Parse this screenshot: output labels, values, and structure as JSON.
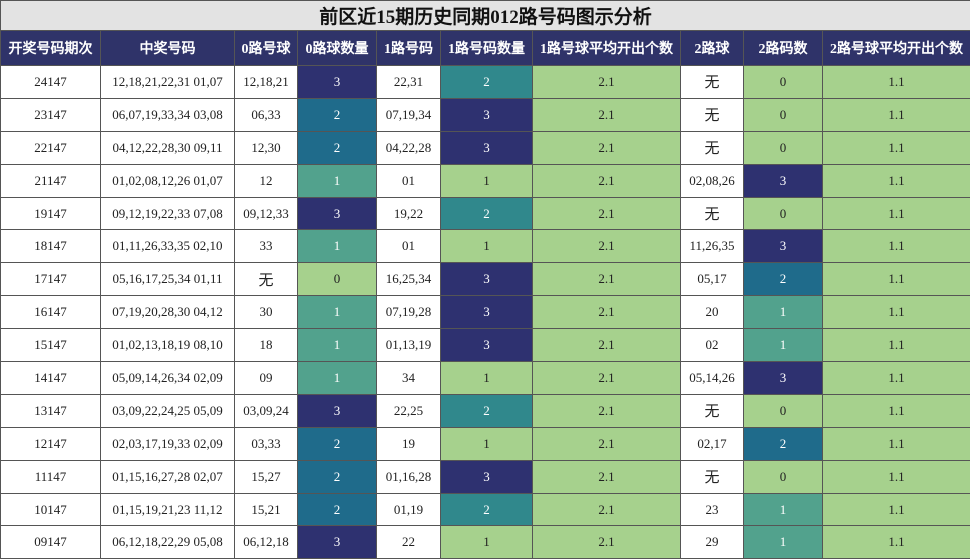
{
  "title": "前区近15期历史同期012路号码图示分析",
  "table": {
    "headers": [
      "开奖号码期次",
      "中奖号码",
      "0路号球",
      "0路球数量",
      "1路号码",
      "1路号码数量",
      "1路号球平均开出个数",
      "2路球",
      "2路码数",
      "2路号球平均开出个数"
    ],
    "rows": [
      [
        "24147",
        "12,18,21,22,31 01,07",
        "12,18,21",
        3,
        "22,31",
        2,
        2.1,
        "无",
        0,
        1.1
      ],
      [
        "23147",
        "06,07,19,33,34 03,08",
        "06,33",
        2,
        "07,19,34",
        3,
        2.1,
        "无",
        0,
        1.1
      ],
      [
        "22147",
        "04,12,22,28,30 09,11",
        "12,30",
        2,
        "04,22,28",
        3,
        2.1,
        "无",
        0,
        1.1
      ],
      [
        "21147",
        "01,02,08,12,26 01,07",
        "12",
        1,
        "01",
        1,
        2.1,
        "02,08,26",
        3,
        1.1
      ],
      [
        "19147",
        "09,12,19,22,33 07,08",
        "09,12,33",
        3,
        "19,22",
        2,
        2.1,
        "无",
        0,
        1.1
      ],
      [
        "18147",
        "01,11,26,33,35 02,10",
        "33",
        1,
        "01",
        1,
        2.1,
        "11,26,35",
        3,
        1.1
      ],
      [
        "17147",
        "05,16,17,25,34 01,11",
        "无",
        0,
        "16,25,34",
        3,
        2.1,
        "05,17",
        2,
        1.1
      ],
      [
        "16147",
        "07,19,20,28,30 04,12",
        "30",
        1,
        "07,19,28",
        3,
        2.1,
        "20",
        1,
        1.1
      ],
      [
        "15147",
        "01,02,13,18,19 08,10",
        "18",
        1,
        "01,13,19",
        3,
        2.1,
        "02",
        1,
        1.1
      ],
      [
        "14147",
        "05,09,14,26,34 02,09",
        "09",
        1,
        "34",
        1,
        2.1,
        "05,14,26",
        3,
        1.1
      ],
      [
        "13147",
        "03,09,22,24,25 05,09",
        "03,09,24",
        3,
        "22,25",
        2,
        2.1,
        "无",
        0,
        1.1
      ],
      [
        "12147",
        "02,03,17,19,33 02,09",
        "03,33",
        2,
        "19",
        1,
        2.1,
        "02,17",
        2,
        1.1
      ],
      [
        "11147",
        "01,15,16,27,28 02,07",
        "15,27",
        2,
        "01,16,28",
        3,
        2.1,
        "无",
        0,
        1.1
      ],
      [
        "10147",
        "01,15,19,21,23 11,12",
        "15,21",
        2,
        "01,19",
        2,
        2.1,
        "23",
        1,
        1.1
      ],
      [
        "09147",
        "06,12,18,22,29 05,08",
        "06,12,18",
        3,
        "22",
        1,
        2.1,
        "29",
        1,
        1.1
      ]
    ]
  }
}
